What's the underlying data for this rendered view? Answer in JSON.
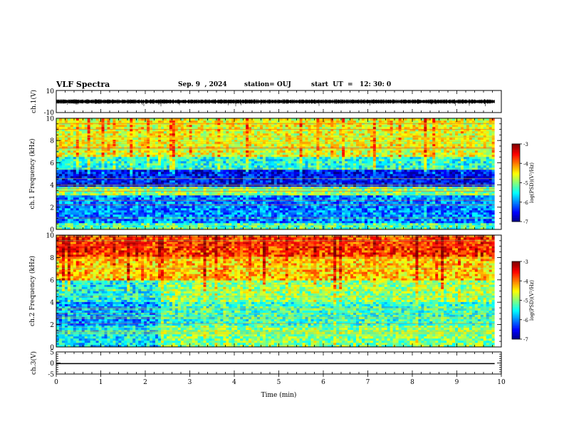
{
  "header": {
    "title": "VLF Spectra",
    "date": "Sep. 9  , 2024",
    "station": "station= OUJ",
    "start": "start  UT  =   12: 30: 0"
  },
  "chart_data": [
    {
      "type": "line",
      "panel": "ch1-waveform",
      "ylabel": "ch.1(V)",
      "ylim": [
        -10,
        10
      ],
      "yticklabels": [
        "10",
        "-10"
      ],
      "xlim": [
        0,
        9.85
      ],
      "baseline": 0,
      "description_values": {
        "typical_amplitude": 1.5,
        "max_spike": -4.5
      }
    },
    {
      "type": "heatmap",
      "panel": "ch1-spectrogram",
      "ylabel": "ch.1 Frequency  (kHz)",
      "ylim": [
        0,
        10
      ],
      "yticks": [
        0,
        2,
        4,
        6,
        8,
        10
      ],
      "xlim": [
        0,
        9.85
      ],
      "colorbar": {
        "label": "log(PSD)(V²/Hz)",
        "range": [
          -7,
          -3
        ],
        "ticks": [
          -3,
          -4,
          -5,
          -6,
          -7
        ]
      },
      "bands": [
        {
          "f0": 0.0,
          "f1": 0.5,
          "level": -5.2
        },
        {
          "f0": 0.5,
          "f1": 3.0,
          "level": -6.0
        },
        {
          "f0": 3.0,
          "f1": 3.8,
          "level": -5.0
        },
        {
          "f0": 3.8,
          "f1": 5.4,
          "level": -6.5
        },
        {
          "f0": 5.4,
          "f1": 6.5,
          "level": -5.4
        },
        {
          "f0": 6.5,
          "f1": 10.0,
          "level": -4.6
        }
      ]
    },
    {
      "type": "heatmap",
      "panel": "ch2-spectrogram",
      "ylabel": "ch.2 Frequency  (kHz)",
      "ylim": [
        0,
        10
      ],
      "yticks": [
        0,
        2,
        4,
        6,
        8,
        10
      ],
      "xlim": [
        0,
        9.85
      ],
      "colorbar": {
        "label": "log(PSD)(V²/Hz)",
        "range": [
          -7,
          -3
        ],
        "ticks": [
          -3,
          -4,
          -5,
          -6,
          -7
        ]
      },
      "bands": [
        {
          "f0": 0.0,
          "f1": 2.0,
          "level": -5.0
        },
        {
          "f0": 2.0,
          "f1": 4.0,
          "level": -5.3
        },
        {
          "f0": 4.0,
          "f1": 6.0,
          "level": -4.9
        },
        {
          "f0": 6.0,
          "f1": 8.0,
          "level": -4.3
        },
        {
          "f0": 8.0,
          "f1": 10.0,
          "level": -3.7
        }
      ],
      "regime_change_min": 2.35
    },
    {
      "type": "line",
      "panel": "ch3-waveform",
      "ylabel": "ch.3(V)",
      "ylim": [
        -5,
        5
      ],
      "yticklabels": [
        "5",
        "0",
        "-5"
      ],
      "xlim": [
        0,
        9.85
      ],
      "constant_value": -0.3
    }
  ],
  "xaxis": {
    "label": "Time  (min)",
    "range": [
      0,
      10
    ],
    "ticks": [
      "0",
      "1",
      "2",
      "3",
      "4",
      "5",
      "6",
      "7",
      "8",
      "9",
      "10"
    ]
  },
  "colors": {
    "trace": "#000000",
    "background": "#ffffff"
  }
}
